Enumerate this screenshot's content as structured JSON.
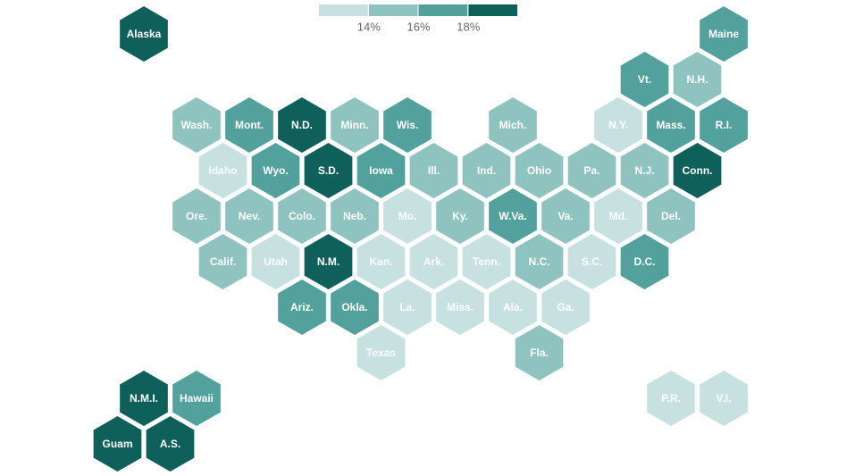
{
  "legend": {
    "colors": [
      "#c6e1df",
      "#8fc3c0",
      "#52a19d",
      "#0f5f5a"
    ],
    "ticks": [
      {
        "value": 14,
        "label": "14%"
      },
      {
        "value": 16,
        "label": "16%"
      },
      {
        "value": 18,
        "label": "18%"
      }
    ]
  },
  "tiles": [
    {
      "label": "Alaska",
      "color": "#0f5f5a"
    },
    {
      "label": "Maine",
      "color": "#52a19d"
    },
    {
      "label": "Vt.",
      "color": "#52a19d"
    },
    {
      "label": "N.H.",
      "color": "#8fc3c0"
    },
    {
      "label": "Wash.",
      "color": "#8fc3c0"
    },
    {
      "label": "Mont.",
      "color": "#52a19d"
    },
    {
      "label": "N.D.",
      "color": "#0f5f5a"
    },
    {
      "label": "Minn.",
      "color": "#8fc3c0"
    },
    {
      "label": "Wis.",
      "color": "#52a19d"
    },
    {
      "label": "Mich.",
      "color": "#8fc3c0"
    },
    {
      "label": "N.Y.",
      "color": "#c6e1df"
    },
    {
      "label": "Mass.",
      "color": "#52a19d"
    },
    {
      "label": "R.I.",
      "color": "#52a19d"
    },
    {
      "label": "Idaho",
      "color": "#c6e1df"
    },
    {
      "label": "Wyo.",
      "color": "#52a19d"
    },
    {
      "label": "S.D.",
      "color": "#0f5f5a"
    },
    {
      "label": "Iowa",
      "color": "#52a19d"
    },
    {
      "label": "Ill.",
      "color": "#8fc3c0"
    },
    {
      "label": "Ind.",
      "color": "#8fc3c0"
    },
    {
      "label": "Ohio",
      "color": "#8fc3c0"
    },
    {
      "label": "Pa.",
      "color": "#8fc3c0"
    },
    {
      "label": "N.J.",
      "color": "#8fc3c0"
    },
    {
      "label": "Conn.",
      "color": "#0f5f5a"
    },
    {
      "label": "Ore.",
      "color": "#8fc3c0"
    },
    {
      "label": "Nev.",
      "color": "#8fc3c0"
    },
    {
      "label": "Colo.",
      "color": "#8fc3c0"
    },
    {
      "label": "Neb.",
      "color": "#8fc3c0"
    },
    {
      "label": "Mo.",
      "color": "#c6e1df"
    },
    {
      "label": "Ky.",
      "color": "#8fc3c0"
    },
    {
      "label": "W.Va.",
      "color": "#52a19d"
    },
    {
      "label": "Va.",
      "color": "#8fc3c0"
    },
    {
      "label": "Md.",
      "color": "#c6e1df"
    },
    {
      "label": "Del.",
      "color": "#8fc3c0"
    },
    {
      "label": "Calif.",
      "color": "#8fc3c0"
    },
    {
      "label": "Utah",
      "color": "#c6e1df"
    },
    {
      "label": "N.M.",
      "color": "#0f5f5a"
    },
    {
      "label": "Kan.",
      "color": "#c6e1df"
    },
    {
      "label": "Ark.",
      "color": "#c6e1df"
    },
    {
      "label": "Tenn.",
      "color": "#c6e1df"
    },
    {
      "label": "N.C.",
      "color": "#8fc3c0"
    },
    {
      "label": "S.C.",
      "color": "#c6e1df"
    },
    {
      "label": "D.C.",
      "color": "#52a19d"
    },
    {
      "label": "Ariz.",
      "color": "#52a19d"
    },
    {
      "label": "Okla.",
      "color": "#52a19d"
    },
    {
      "label": "La.",
      "color": "#c6e1df"
    },
    {
      "label": "Miss.",
      "color": "#c6e1df"
    },
    {
      "label": "Ala.",
      "color": "#c6e1df"
    },
    {
      "label": "Ga.",
      "color": "#c6e1df"
    },
    {
      "label": "Texas",
      "color": "#c6e1df"
    },
    {
      "label": "Fla.",
      "color": "#8fc3c0"
    },
    {
      "label": "N.M.I.",
      "color": "#0f5f5a"
    },
    {
      "label": "Hawaii",
      "color": "#52a19d"
    },
    {
      "label": "P.R.",
      "color": "#c6e1df"
    },
    {
      "label": "V.I.",
      "color": "#c6e1df"
    },
    {
      "label": "Guam",
      "color": "#0f5f5a"
    },
    {
      "label": "A.S.",
      "color": "#0f5f5a"
    }
  ]
}
